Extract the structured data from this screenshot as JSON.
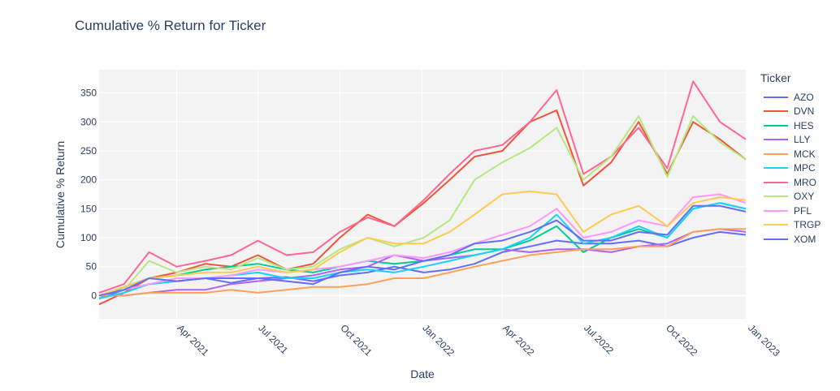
{
  "chart_data": {
    "type": "line",
    "title": "Cumulative % Return for Ticker",
    "xlabel": "Date",
    "ylabel": "Cumulative % Return",
    "legend_title": "Ticker",
    "legend_position": "right",
    "grid": true,
    "xlim": [
      "2021-01-04",
      "2022-12-30"
    ],
    "ylim": [
      -40,
      390
    ],
    "x_ticks": [
      "2021-04-01",
      "2021-07-01",
      "2021-10-01",
      "2022-01-01",
      "2022-04-01",
      "2022-07-01",
      "2022-10-01",
      "2023-01-01"
    ],
    "x_tick_labels": [
      "Apr 2021",
      "Jul 2021",
      "Oct 2021",
      "Jan 2022",
      "Apr 2022",
      "Jul 2022",
      "Oct 2022",
      "Jan 2023"
    ],
    "y_ticks": [
      0,
      50,
      100,
      150,
      200,
      250,
      300,
      350
    ],
    "y_tick_labels": [
      "0",
      "50",
      "100",
      "150",
      "200",
      "250",
      "300",
      "350"
    ],
    "x": [
      "2021-01-04",
      "2021-02-01",
      "2021-03-01",
      "2021-04-01",
      "2021-05-03",
      "2021-06-01",
      "2021-07-01",
      "2021-08-02",
      "2021-09-01",
      "2021-10-01",
      "2021-11-01",
      "2021-12-01",
      "2022-01-03",
      "2022-02-01",
      "2022-03-01",
      "2022-04-01",
      "2022-05-02",
      "2022-06-01",
      "2022-07-01",
      "2022-08-01",
      "2022-09-01",
      "2022-10-03",
      "2022-11-01",
      "2022-12-01",
      "2022-12-30"
    ],
    "series": [
      {
        "name": "AZO",
        "color": "#636efa",
        "values": [
          -5,
          10,
          20,
          25,
          30,
          22,
          30,
          32,
          25,
          35,
          40,
          50,
          40,
          45,
          55,
          75,
          85,
          95,
          90,
          90,
          95,
          85,
          100,
          110,
          105
        ]
      },
      {
        "name": "DVN",
        "color": "#EF553B",
        "values": [
          -15,
          5,
          30,
          40,
          55,
          50,
          70,
          45,
          55,
          100,
          140,
          120,
          160,
          200,
          240,
          250,
          300,
          320,
          190,
          230,
          300,
          210,
          300,
          270,
          235
        ]
      },
      {
        "name": "HES",
        "color": "#00cc96",
        "values": [
          -5,
          15,
          30,
          35,
          45,
          50,
          55,
          45,
          40,
          50,
          60,
          55,
          60,
          70,
          80,
          80,
          95,
          120,
          75,
          100,
          115,
          100,
          150,
          160,
          150
        ]
      },
      {
        "name": "LLY",
        "color": "#ab63fa",
        "values": [
          0,
          0,
          5,
          10,
          10,
          20,
          25,
          30,
          35,
          45,
          50,
          70,
          60,
          65,
          70,
          80,
          75,
          80,
          80,
          75,
          85,
          90,
          110,
          115,
          110
        ]
      },
      {
        "name": "MCK",
        "color": "#FFA15A",
        "values": [
          0,
          0,
          5,
          5,
          5,
          10,
          5,
          10,
          15,
          15,
          20,
          30,
          30,
          40,
          50,
          60,
          70,
          75,
          80,
          80,
          85,
          85,
          110,
          115,
          115
        ]
      },
      {
        "name": "MPC",
        "color": "#19d3f3",
        "values": [
          -5,
          5,
          20,
          25,
          30,
          35,
          40,
          30,
          30,
          40,
          45,
          40,
          50,
          60,
          70,
          80,
          100,
          140,
          90,
          100,
          120,
          100,
          150,
          160,
          150
        ]
      },
      {
        "name": "MRO",
        "color": "#FF6692",
        "values": [
          5,
          20,
          75,
          50,
          60,
          70,
          95,
          70,
          75,
          110,
          135,
          120,
          165,
          210,
          250,
          260,
          300,
          355,
          210,
          240,
          290,
          220,
          370,
          300,
          270
        ]
      },
      {
        "name": "OXY",
        "color": "#B6E880",
        "values": [
          0,
          10,
          60,
          40,
          50,
          45,
          65,
          45,
          50,
          80,
          100,
          85,
          100,
          130,
          200,
          230,
          255,
          290,
          200,
          240,
          310,
          205,
          310,
          265,
          235
        ]
      },
      {
        "name": "PFL",
        "color": "#FF97FF",
        "values": [
          0,
          10,
          20,
          30,
          30,
          35,
          45,
          40,
          45,
          50,
          60,
          70,
          65,
          75,
          90,
          105,
          120,
          150,
          100,
          110,
          130,
          120,
          170,
          175,
          160
        ]
      },
      {
        "name": "TRGP",
        "color": "#FECB52",
        "values": [
          0,
          15,
          30,
          35,
          40,
          40,
          50,
          40,
          45,
          75,
          100,
          90,
          90,
          110,
          140,
          175,
          180,
          175,
          110,
          140,
          155,
          120,
          160,
          170,
          165
        ]
      },
      {
        "name": "XOM",
        "color": "#636efa",
        "values": [
          0,
          10,
          30,
          25,
          30,
          30,
          30,
          25,
          20,
          40,
          50,
          45,
          60,
          70,
          90,
          95,
          110,
          130,
          95,
          95,
          110,
          105,
          155,
          155,
          145
        ]
      }
    ]
  }
}
